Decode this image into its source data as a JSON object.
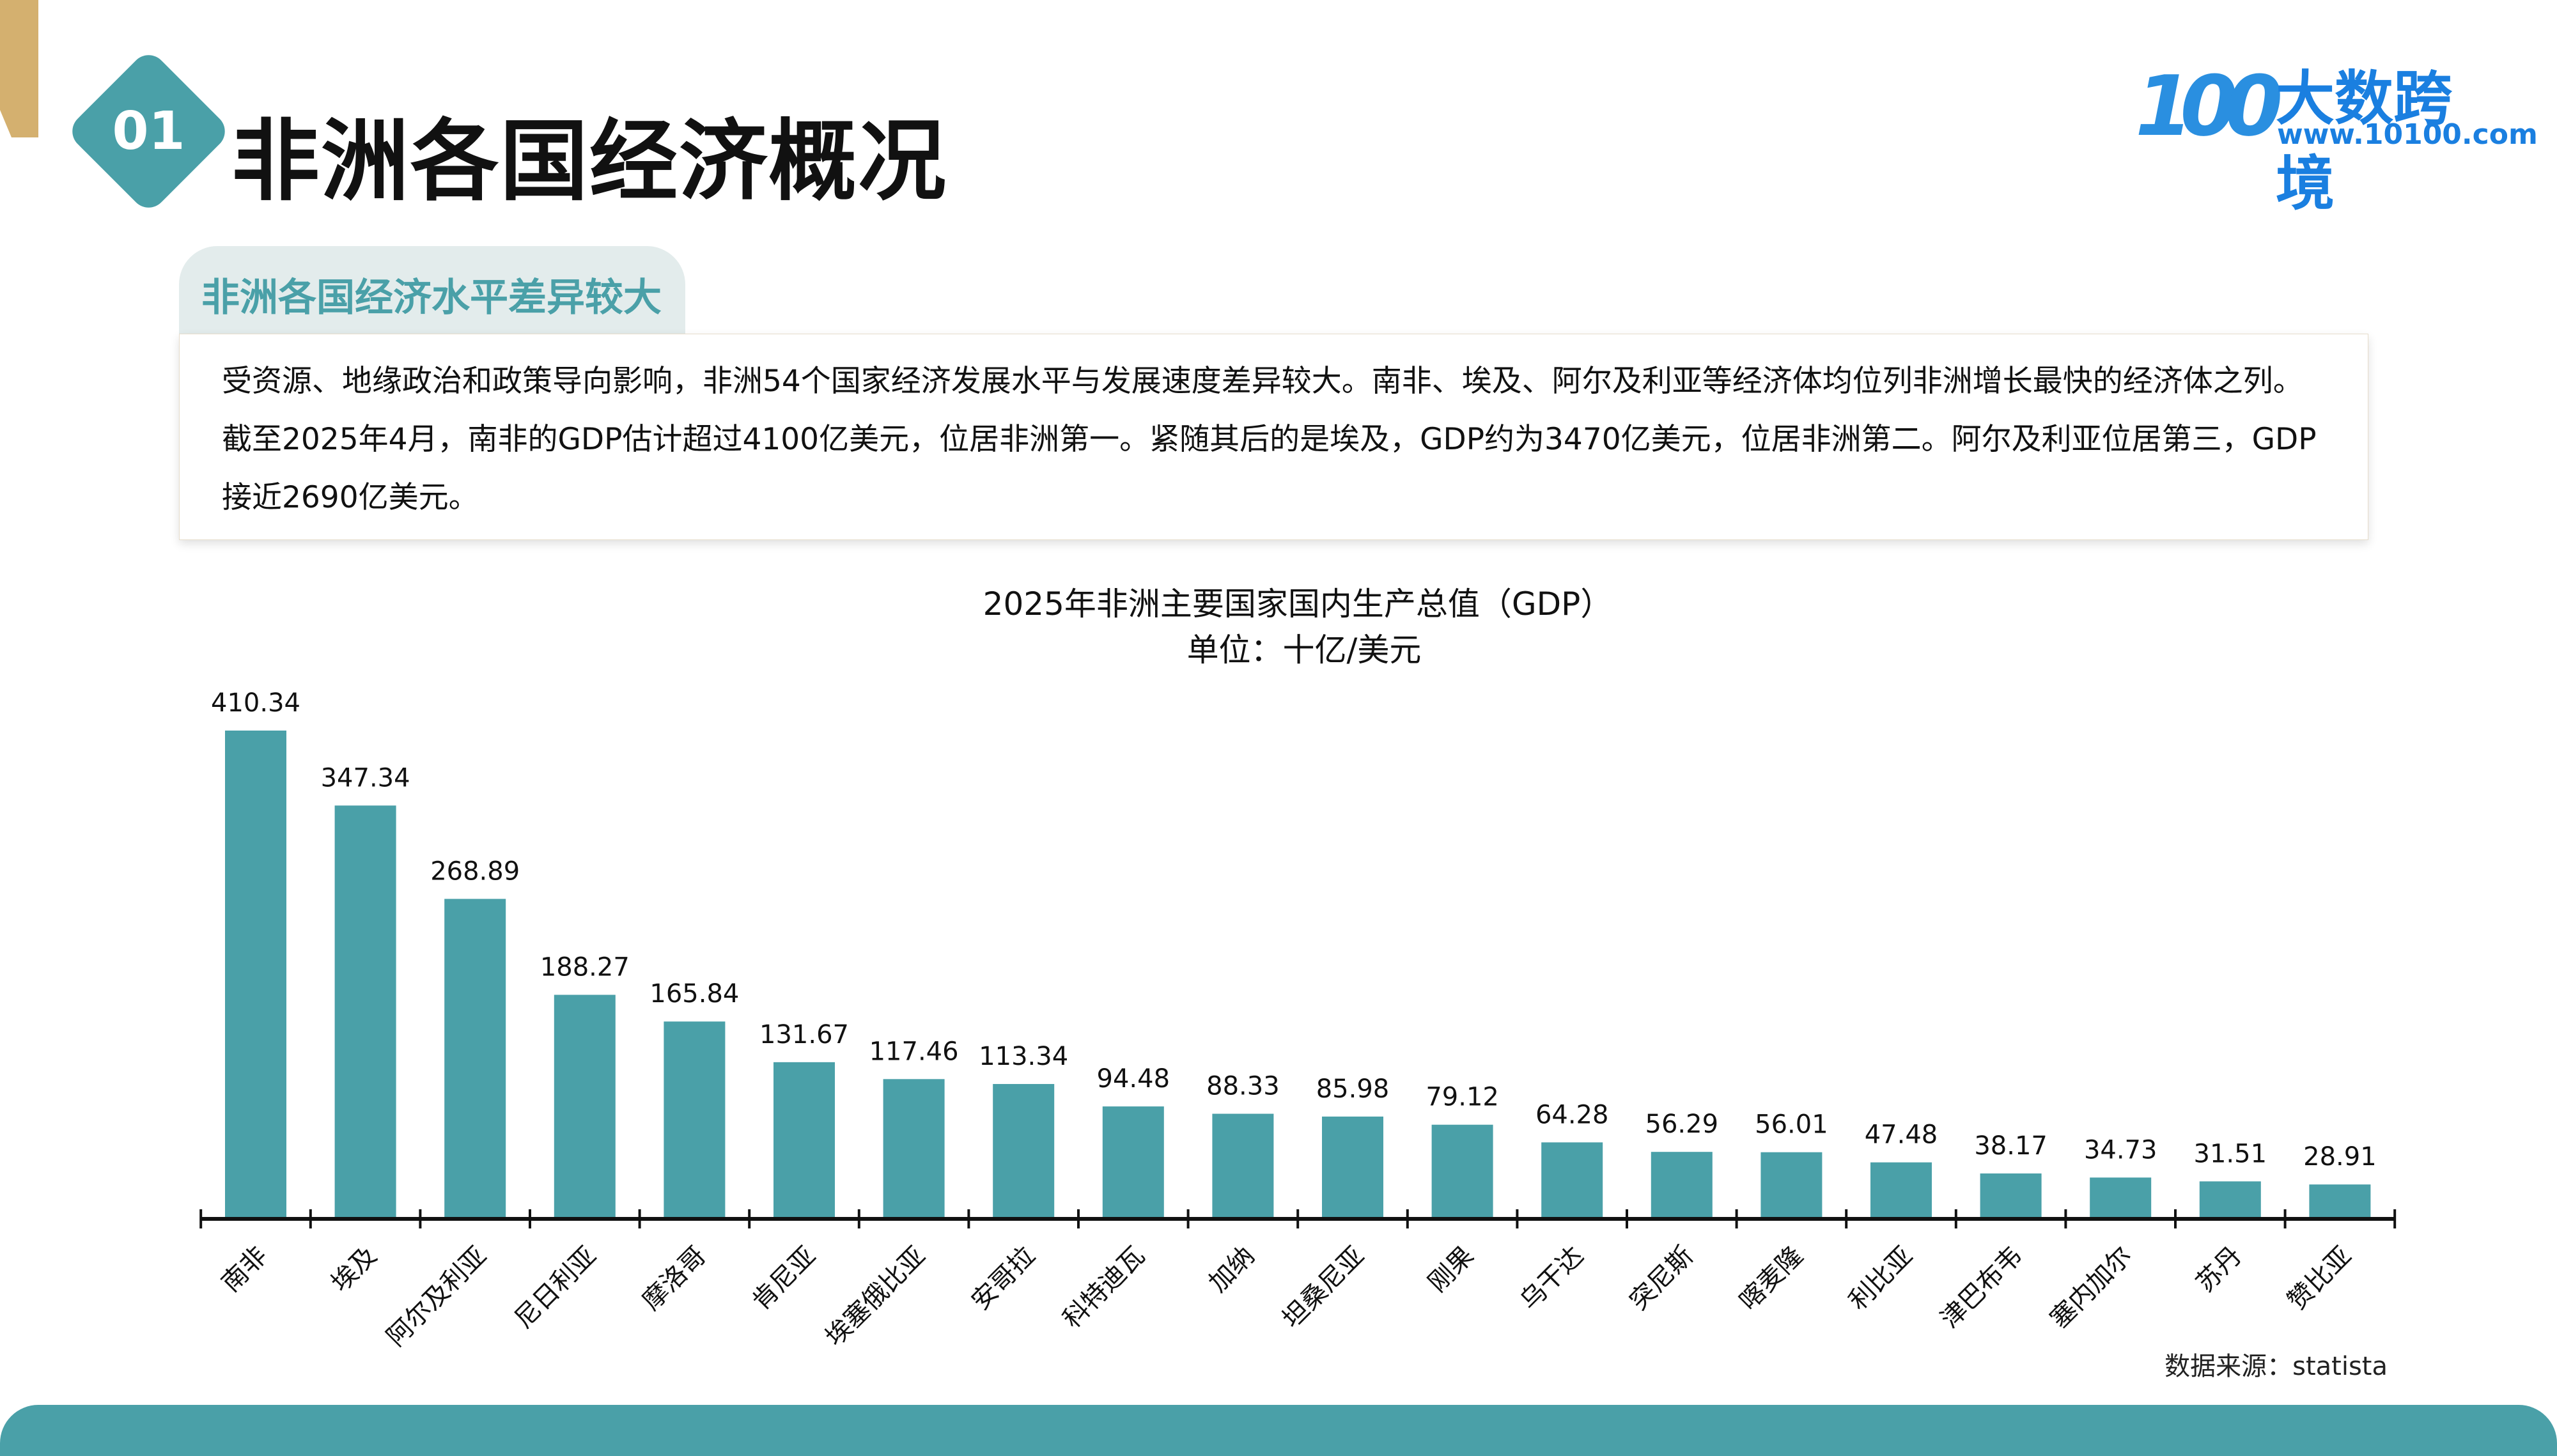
{
  "header": {
    "number": "01",
    "title": "非洲各国经济概况"
  },
  "logo": {
    "name": "大数跨境",
    "url": "www.10100.com",
    "mark": "100"
  },
  "section": {
    "tab_label": "非洲各国经济水平差异较大",
    "body": "受资源、地缘政治和政策导向影响，非洲54个国家经济发展水平与发展速度差异较大。南非、埃及、阿尔及利亚等经济体均位列非洲增长最快的经济体之列。 截至2025年4月，南非的GDP估计超过4100亿美元，位居非洲第一。紧随其后的是埃及，GDP约为3470亿美元，位居非洲第二。阿尔及利亚位居第三，GDP接近2690亿美元。"
  },
  "chart_data": {
    "type": "bar",
    "title": "2025年非洲主要国家国内生产总值（GDP）",
    "subtitle": "单位：十亿/美元",
    "categories": [
      "南非",
      "埃及",
      "阿尔及利亚",
      "尼日利亚",
      "摩洛哥",
      "肯尼亚",
      "埃塞俄比亚",
      "安哥拉",
      "科特迪瓦",
      "加纳",
      "坦桑尼亚",
      "刚果",
      "乌干达",
      "突尼斯",
      "喀麦隆",
      "利比亚",
      "津巴布韦",
      "塞内加尔",
      "苏丹",
      "赞比亚"
    ],
    "values": [
      410.34,
      347.34,
      268.89,
      188.27,
      165.84,
      131.67,
      117.46,
      113.34,
      94.48,
      88.33,
      85.98,
      79.12,
      64.28,
      56.29,
      56.01,
      47.48,
      38.17,
      34.73,
      31.51,
      28.91
    ],
    "value_labels": [
      "410.34",
      "347.34",
      "268.89",
      "188.27",
      "165.84",
      "131.67",
      "117.46",
      "113.34",
      "94.48",
      "88.33",
      "85.98",
      "79.12",
      "64.28",
      "56.29",
      "56.01",
      "47.48",
      "38.17",
      "34.73",
      "31.51",
      "28.91"
    ],
    "ylim": [
      0,
      410.34
    ],
    "bar_color": "#4aa0a8",
    "grid": false
  },
  "source": "数据来源：statista"
}
